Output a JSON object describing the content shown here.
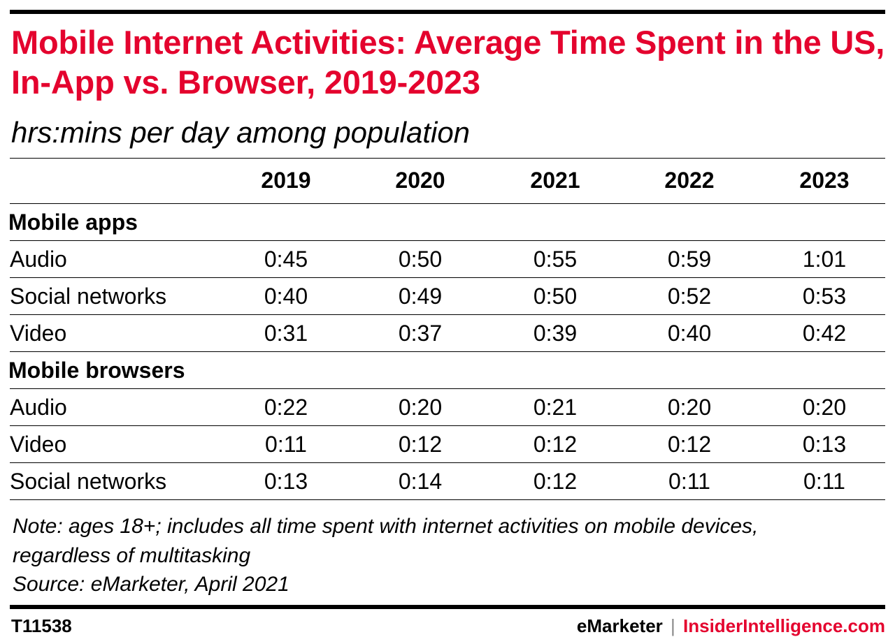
{
  "colors": {
    "accent": "#e4032e",
    "text": "#000000"
  },
  "chart_data": {
    "type": "table",
    "title": "Mobile Internet Activities: Average Time Spent in the US, In-App vs. Browser, 2019-2023",
    "subtitle": "hrs:mins per day among population",
    "columns": [
      "2019",
      "2020",
      "2021",
      "2022",
      "2023"
    ],
    "groups": [
      {
        "name": "Mobile apps",
        "rows": [
          {
            "label": "Audio",
            "values": [
              "0:45",
              "0:50",
              "0:55",
              "0:59",
              "1:01"
            ]
          },
          {
            "label": "Social networks",
            "values": [
              "0:40",
              "0:49",
              "0:50",
              "0:52",
              "0:53"
            ]
          },
          {
            "label": "Video",
            "values": [
              "0:31",
              "0:37",
              "0:39",
              "0:40",
              "0:42"
            ]
          }
        ]
      },
      {
        "name": "Mobile browsers",
        "rows": [
          {
            "label": "Audio",
            "values": [
              "0:22",
              "0:20",
              "0:21",
              "0:20",
              "0:20"
            ]
          },
          {
            "label": "Video",
            "values": [
              "0:11",
              "0:12",
              "0:12",
              "0:12",
              "0:13"
            ]
          },
          {
            "label": "Social networks",
            "values": [
              "0:13",
              "0:14",
              "0:12",
              "0:11",
              "0:11"
            ]
          }
        ]
      }
    ]
  },
  "note": {
    "line1": "Note: ages 18+; includes all time spent with internet activities on mobile devices,",
    "line2": "regardless of multitasking",
    "source": "Source: eMarketer, April 2021"
  },
  "footer": {
    "id": "T11538",
    "brand1": "eMarketer",
    "separator": "|",
    "brand2": "InsiderIntelligence.com"
  }
}
